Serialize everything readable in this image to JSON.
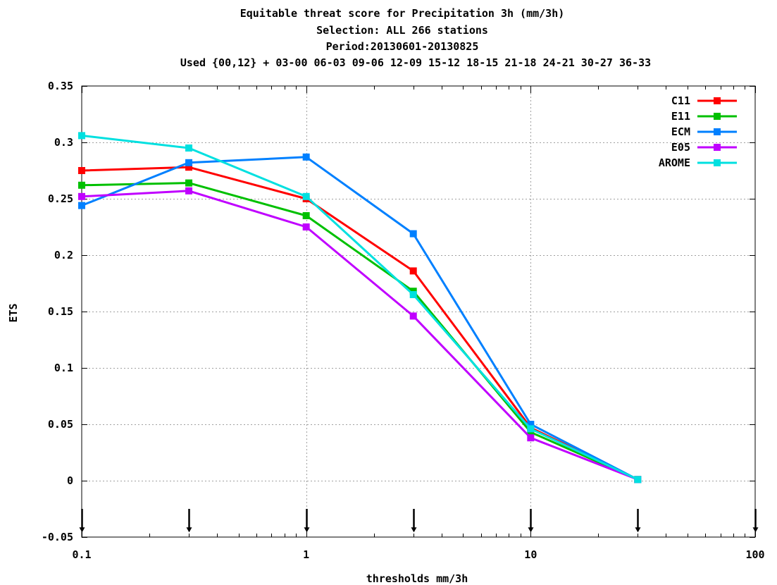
{
  "chart_data": {
    "type": "line",
    "title": "Equitable threat score  for Precipitation 3h (mm/3h)",
    "subtitle_lines": [
      "Selection: ALL    266 stations",
      "Period:20130601-20130825",
      "Used {00,12} + 03-00 06-03 09-06 12-09 15-12 18-15 21-18 24-21 30-27 36-33"
    ],
    "xlabel": "thresholds mm/3h",
    "ylabel": "ETS",
    "xscale": "log",
    "xlim": [
      0.1,
      100
    ],
    "ylim": [
      -0.05,
      0.35
    ],
    "xticks": [
      0.1,
      1,
      10,
      100
    ],
    "xtick_labels": [
      "0.1",
      "1",
      "10",
      "100"
    ],
    "yticks": [
      -0.05,
      0,
      0.05,
      0.1,
      0.15,
      0.2,
      0.25,
      0.3,
      0.35
    ],
    "ytick_labels": [
      "-0.05",
      "0",
      "0.05",
      "0.1",
      "0.15",
      "0.2",
      "0.25",
      "0.3",
      "0.35"
    ],
    "grid": true,
    "legend_position": "top-right",
    "x": [
      0.1,
      0.3,
      1,
      3,
      10,
      30
    ],
    "series": [
      {
        "name": "C11",
        "color": "#ff0000",
        "values": [
          0.275,
          0.278,
          0.25,
          0.186,
          0.047,
          0.001
        ]
      },
      {
        "name": "E11",
        "color": "#00c000",
        "values": [
          0.262,
          0.264,
          0.235,
          0.168,
          0.043,
          0.001
        ]
      },
      {
        "name": "ECM",
        "color": "#0080ff",
        "values": [
          0.244,
          0.282,
          0.287,
          0.219,
          0.05,
          0.001
        ]
      },
      {
        "name": "E05",
        "color": "#c000ff",
        "values": [
          0.252,
          0.257,
          0.225,
          0.146,
          0.038,
          0.001
        ]
      },
      {
        "name": "AROME",
        "color": "#00e0e0",
        "values": [
          0.306,
          0.295,
          0.252,
          0.165,
          0.046,
          0.001
        ]
      }
    ],
    "markers_on_bottom_axis_at": [
      0.1,
      0.3,
      1,
      3,
      10,
      30,
      100
    ]
  }
}
